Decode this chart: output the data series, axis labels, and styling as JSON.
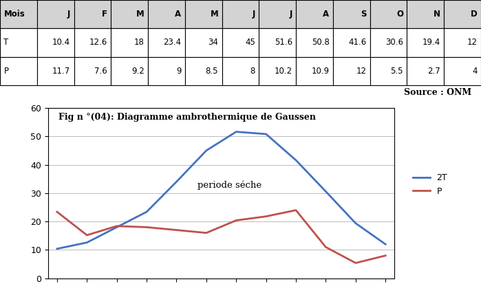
{
  "months": [
    "J",
    "F",
    "M",
    "A",
    "M",
    "J",
    "J",
    "A",
    "S",
    "O",
    "N",
    "D"
  ],
  "T2": [
    10.4,
    12.6,
    18,
    23.4,
    34,
    45,
    51.6,
    50.8,
    41.6,
    30.6,
    19.4,
    12
  ],
  "P": [
    11.7,
    7.6,
    9.2,
    9,
    8.5,
    8,
    10.2,
    10.9,
    12,
    5.5,
    2.7,
    4
  ],
  "P_raw_row1": [
    10.4,
    12.6,
    18,
    23.4,
    34,
    45,
    51.6,
    50.8,
    41.6,
    30.6,
    19.4,
    12
  ],
  "P_raw_row2": [
    11.7,
    7.6,
    9.2,
    9,
    8.5,
    8,
    10.2,
    10.9,
    12,
    5.5,
    2.7,
    4
  ],
  "title": "Fig n °(04): Diagramme ambrothermique de Gaussen",
  "annotation": "periode séche",
  "color_2T": "#4472C4",
  "color_P": "#C0504D",
  "ylim": [
    0,
    60
  ],
  "yticks": [
    0,
    10,
    20,
    30,
    40,
    50,
    60
  ],
  "source_text": "Source : ONM",
  "table_header": [
    "Mois",
    "J",
    "F",
    "M",
    "A",
    "M",
    "J",
    "J",
    "A",
    "S",
    "O",
    "N",
    "D"
  ],
  "table_row1_label": "T",
  "table_row2_label": "P",
  "legend_2T": "2T",
  "legend_P": "P",
  "bg_color": "#FFFFFF"
}
